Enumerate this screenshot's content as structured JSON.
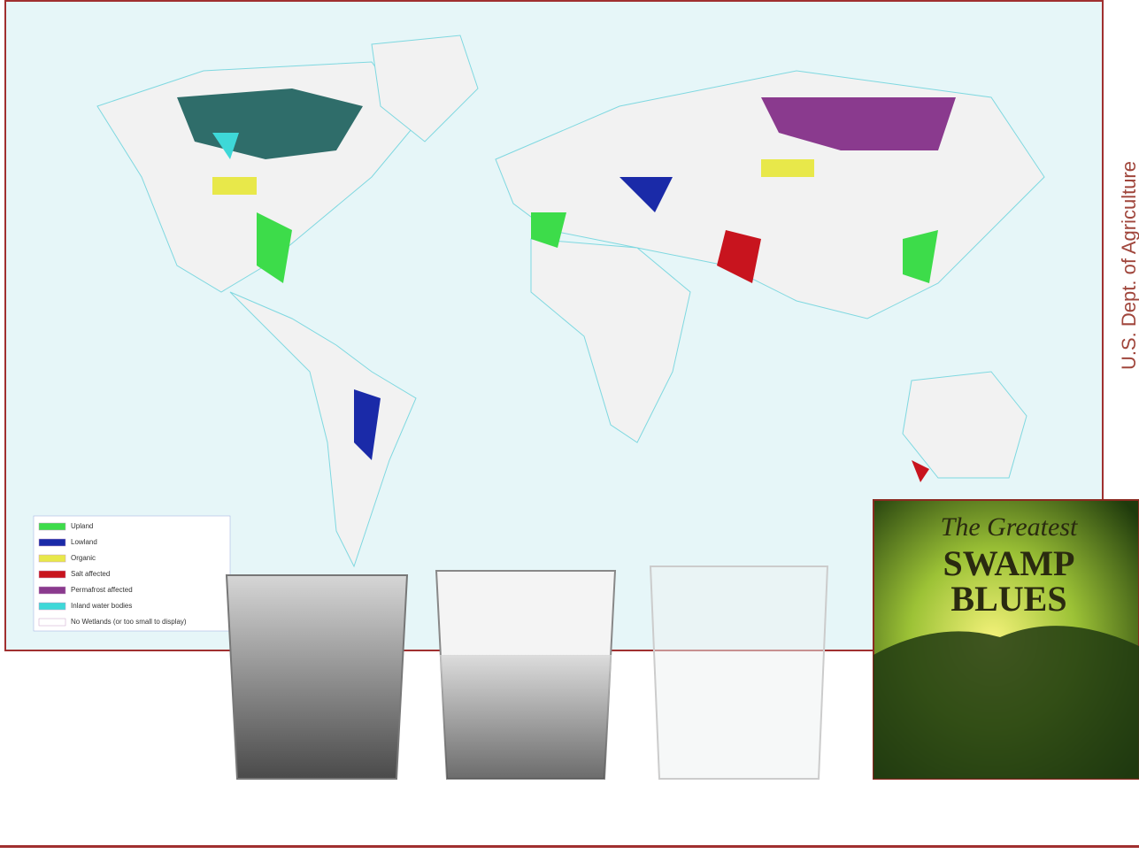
{
  "map": {
    "legend": [
      {
        "label": "Upland",
        "color": "#3ddc4a"
      },
      {
        "label": "Lowland",
        "color": "#1a2aa8"
      },
      {
        "label": "Organic",
        "color": "#e8e84a"
      },
      {
        "label": "Salt affected",
        "color": "#c8141e"
      },
      {
        "label": "Permafrost affected",
        "color": "#8a3a8e"
      },
      {
        "label": "Inland water bodies",
        "color": "#3ed8d8"
      },
      {
        "label": "No Wetlands (or too small to display)",
        "color": "#ffffff"
      }
    ]
  },
  "attribution": "U.S. Dept. of Agriculture",
  "album": {
    "line1": "The Greatest",
    "line2": "SWAMP",
    "line3": "BLUES"
  }
}
